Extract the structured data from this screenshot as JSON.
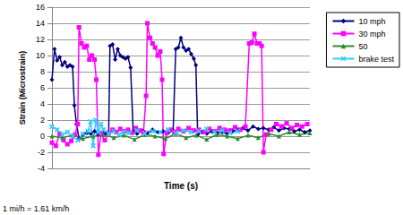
{
  "chart_data": {
    "type": "line",
    "x_label": "Time (s)",
    "y_label": "Strain (Microstrain)",
    "annotations": [
      "1 mi/h = 1.61 km/h"
    ],
    "xlim": [
      0,
      100
    ],
    "ylim": [
      -4,
      16
    ],
    "yticks": [
      -4,
      -2,
      0,
      2,
      4,
      6,
      8,
      10,
      12,
      14,
      16
    ],
    "grid": true,
    "legend": "top-right",
    "tick_labels": "y",
    "series": [
      {
        "name": "10 mph",
        "color": "#000080",
        "marker": "diamond",
        "x": [
          0,
          1,
          2,
          3,
          4,
          5,
          6,
          7,
          8,
          8.7,
          9.5,
          10.5,
          12,
          13.5,
          15,
          16.5,
          18,
          19.5,
          21,
          22,
          22.5,
          23.5,
          24.5,
          25.5,
          26.5,
          27.5,
          28.5,
          29.5,
          30.5,
          31.5,
          33,
          35,
          37,
          39,
          41,
          43,
          45,
          47,
          48,
          49,
          50,
          51,
          52,
          53,
          54,
          55,
          55.8,
          56.5,
          58,
          60,
          62,
          64,
          66,
          68,
          70,
          72,
          74,
          76,
          78,
          80,
          82,
          84,
          86,
          88,
          90,
          92,
          94,
          96,
          98,
          100
        ],
        "values": [
          7,
          10.8,
          9.4,
          9.8,
          8.8,
          9.2,
          8.6,
          8.8,
          8.6,
          3.8,
          1.5,
          -0.3,
          0.2,
          0.4,
          0.3,
          0.6,
          0.2,
          0.5,
          0.3,
          0.5,
          11.2,
          11.4,
          9.5,
          10.8,
          10,
          9.8,
          9.6,
          9.8,
          8.5,
          0.6,
          0.3,
          0.7,
          0.4,
          0.8,
          0.5,
          0.6,
          0.4,
          0.7,
          10.8,
          11,
          12.2,
          11,
          10.6,
          10.8,
          10.2,
          9.6,
          8.8,
          0.2,
          0.5,
          0.3,
          0.6,
          0.4,
          0.5,
          0.3,
          0.6,
          0.8,
          1,
          0.7,
          1.2,
          0.9,
          1,
          0.8,
          1.1,
          0.7,
          1,
          0.9,
          0.6,
          0.8,
          0.5,
          0.7
        ]
      },
      {
        "name": "30 mph",
        "color": "#ff00ff",
        "marker": "square",
        "x": [
          0,
          1.5,
          3,
          4.5,
          6,
          7.5,
          9,
          10,
          10.5,
          11.5,
          12.5,
          13.5,
          14.5,
          15.5,
          16.5,
          17.2,
          18,
          19,
          20.5,
          22,
          23.5,
          25,
          26.5,
          28,
          29.5,
          31,
          32.5,
          34,
          35.5,
          36.5,
          37,
          38,
          39,
          40,
          41,
          42,
          42.7,
          43.3,
          44.5,
          46,
          47.5,
          49,
          51,
          53,
          55,
          57,
          59,
          61,
          63,
          65,
          67,
          69,
          71,
          73,
          75,
          76.5,
          77.5,
          78.5,
          79.5,
          80.5,
          81.3,
          82,
          83,
          85,
          87,
          89,
          91,
          93,
          95,
          97,
          99
        ],
        "values": [
          -0.8,
          -1.2,
          0.3,
          -0.5,
          -1,
          -0.6,
          0.2,
          1.5,
          13.5,
          11.5,
          11,
          11.2,
          9.5,
          10,
          9.5,
          7,
          -2.3,
          0.3,
          -0.5,
          0.4,
          0.8,
          0.5,
          0.9,
          0.6,
          0.8,
          0.4,
          1,
          0.7,
          0.5,
          5,
          14,
          12.2,
          11.5,
          11,
          10,
          10.5,
          7,
          -2.2,
          0.4,
          0.8,
          0.5,
          0.9,
          0.6,
          1,
          0.7,
          0.8,
          0.5,
          0.9,
          0.6,
          1,
          0.8,
          0.7,
          1.1,
          0.8,
          1.2,
          11.5,
          11.6,
          12.7,
          11.5,
          11.5,
          11.2,
          -2,
          0.2,
          0.8,
          1.5,
          1.2,
          1.6,
          1,
          1.4,
          1.2,
          1.5
        ]
      },
      {
        "name": "50",
        "color": "#2e8b2e",
        "marker": "triangle",
        "x": [
          0,
          4,
          8,
          12,
          16,
          20,
          24,
          28,
          32,
          36,
          40,
          44,
          48,
          52,
          56,
          60,
          64,
          68,
          72,
          76,
          80,
          84,
          88,
          92,
          96,
          100
        ],
        "values": [
          0,
          -0.2,
          0.1,
          -0.3,
          0,
          0.2,
          -0.2,
          0.1,
          -0.4,
          0.2,
          0,
          -0.3,
          0.3,
          -0.2,
          0.1,
          -0.4,
          0.2,
          0,
          -0.3,
          0.1,
          -0.2,
          0.3,
          0,
          0.5,
          0.2,
          0.4
        ]
      },
      {
        "name": "brake test",
        "color": "#33ccff",
        "marker": "x",
        "x": [
          0,
          2,
          4,
          6,
          8,
          10,
          12,
          14,
          15,
          16,
          17,
          18,
          19,
          20,
          22,
          24,
          26,
          28,
          30,
          33,
          36,
          39,
          42,
          45,
          48,
          51,
          54,
          57,
          60,
          63,
          66,
          69,
          72
        ],
        "values": [
          1.2,
          0.8,
          0.2,
          0.5,
          0,
          -0.5,
          0.3,
          0.6,
          1.8,
          -1.2,
          2,
          0.5,
          1.5,
          0.8,
          0.3,
          0.6,
          0.2,
          0.5,
          0.4,
          0.7,
          0.3,
          0.6,
          0.5,
          0.8,
          0.4,
          0.7,
          0.5,
          0.6,
          0.9,
          0.5,
          0.7,
          0.4,
          0.6
        ]
      }
    ]
  }
}
